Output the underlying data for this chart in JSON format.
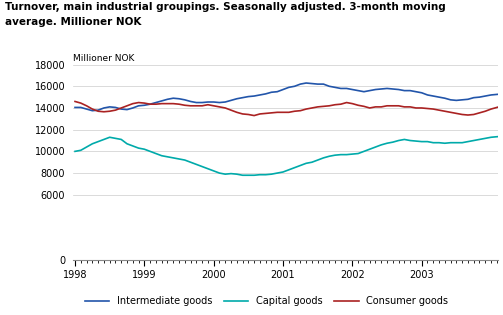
{
  "title_line1": "Turnover, main industrial groupings. Seasonally adjusted. 3-month moving",
  "title_line2": "average. Millioner NOK",
  "ylabel": "Millioner NOK",
  "ylim": [
    0,
    18000
  ],
  "yticks": [
    0,
    6000,
    8000,
    10000,
    12000,
    14000,
    16000,
    18000
  ],
  "xlim_start": 1997.97,
  "xlim_end": 2004.1,
  "xtick_years": [
    1998,
    1999,
    2000,
    2001,
    2002,
    2003
  ],
  "colors": {
    "intermediate": "#2255aa",
    "capital": "#00aaaa",
    "consumer": "#aa2222"
  },
  "legend": [
    "Intermediate goods",
    "Capital goods",
    "Consumer goods"
  ],
  "background_color": "#ffffff",
  "grid_color": "#cccccc",
  "intermediate_goods": [
    14050,
    14050,
    13900,
    13750,
    13800,
    14000,
    14100,
    14050,
    13900,
    13850,
    14000,
    14200,
    14250,
    14350,
    14500,
    14650,
    14800,
    14900,
    14850,
    14750,
    14600,
    14500,
    14500,
    14550,
    14550,
    14500,
    14550,
    14700,
    14850,
    14950,
    15050,
    15100,
    15200,
    15300,
    15450,
    15500,
    15700,
    15900,
    16000,
    16200,
    16300,
    16250,
    16200,
    16200,
    16000,
    15900,
    15800,
    15800,
    15700,
    15600,
    15500,
    15600,
    15700,
    15750,
    15800,
    15750,
    15700,
    15600,
    15600,
    15500,
    15400,
    15200,
    15100,
    15000,
    14900,
    14750,
    14700,
    14750,
    14800,
    14950,
    15000,
    15100,
    15200,
    15250,
    15300,
    15300
  ],
  "capital_goods": [
    10000,
    10100,
    10400,
    10700,
    10900,
    11100,
    11300,
    11200,
    11100,
    10700,
    10500,
    10300,
    10200,
    10000,
    9800,
    9600,
    9500,
    9400,
    9300,
    9200,
    9000,
    8800,
    8600,
    8400,
    8200,
    8000,
    7900,
    7950,
    7900,
    7800,
    7800,
    7800,
    7850,
    7850,
    7900,
    8000,
    8100,
    8300,
    8500,
    8700,
    8900,
    9000,
    9200,
    9400,
    9550,
    9650,
    9700,
    9700,
    9750,
    9800,
    10000,
    10200,
    10400,
    10600,
    10750,
    10850,
    11000,
    11100,
    11000,
    10950,
    10900,
    10900,
    10800,
    10800,
    10750,
    10800,
    10800,
    10800,
    10900,
    11000,
    11100,
    11200,
    11300,
    11350,
    11400,
    11500
  ],
  "consumer_goods": [
    14600,
    14450,
    14200,
    13900,
    13700,
    13650,
    13700,
    13800,
    14000,
    14200,
    14400,
    14500,
    14450,
    14350,
    14350,
    14400,
    14400,
    14400,
    14350,
    14250,
    14200,
    14200,
    14200,
    14300,
    14200,
    14100,
    14000,
    13800,
    13600,
    13450,
    13400,
    13300,
    13450,
    13500,
    13550,
    13600,
    13600,
    13600,
    13700,
    13750,
    13900,
    14000,
    14100,
    14150,
    14200,
    14300,
    14350,
    14500,
    14400,
    14250,
    14150,
    14000,
    14100,
    14100,
    14200,
    14200,
    14200,
    14100,
    14100,
    14000,
    14000,
    13950,
    13900,
    13800,
    13700,
    13600,
    13500,
    13400,
    13350,
    13400,
    13550,
    13700,
    13900,
    14050,
    14200,
    14250
  ]
}
